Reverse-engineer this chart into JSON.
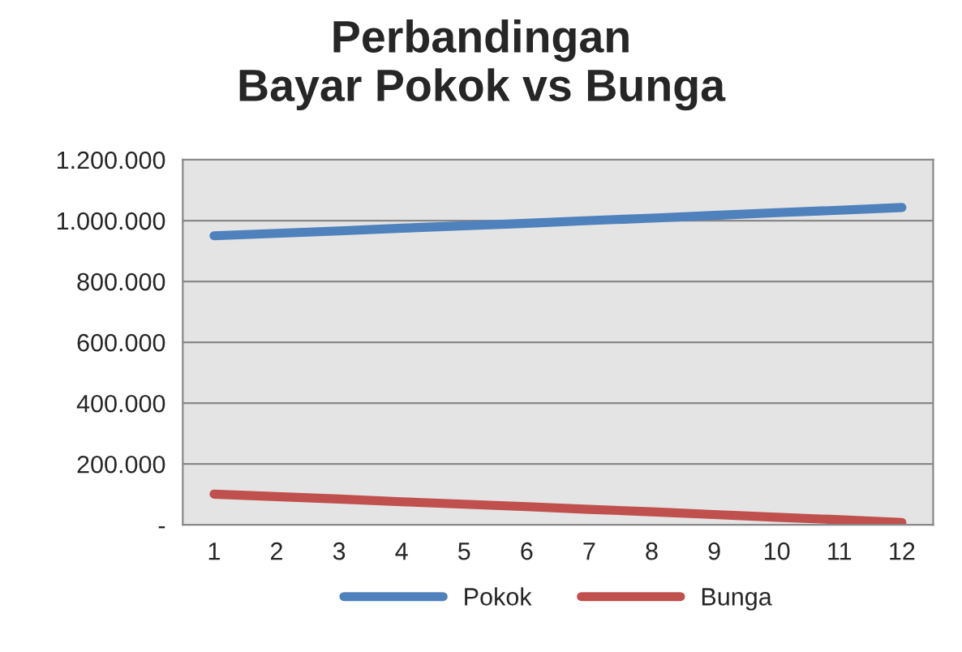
{
  "chart_data": {
    "type": "line",
    "title": "Perbandingan\nBayar Pokok vs Bunga",
    "categories": [
      "1",
      "2",
      "3",
      "4",
      "5",
      "6",
      "7",
      "8",
      "9",
      "10",
      "11",
      "12"
    ],
    "series": [
      {
        "name": "Pokok",
        "color": "#4f81bd",
        "values": [
          950000,
          958000,
          966000,
          975000,
          983000,
          991000,
          1000000,
          1008000,
          1017000,
          1026000,
          1034000,
          1043000
        ]
      },
      {
        "name": "Bunga",
        "color": "#c0504d",
        "values": [
          101000,
          93000,
          85000,
          76000,
          68000,
          60000,
          51000,
          43000,
          34000,
          25000,
          17000,
          8000
        ]
      }
    ],
    "ylim": [
      0,
      1200000
    ],
    "yticks": [
      {
        "value": 0,
        "label": "-"
      },
      {
        "value": 200000,
        "label": "200.000"
      },
      {
        "value": 400000,
        "label": "400.000"
      },
      {
        "value": 600000,
        "label": "600.000"
      },
      {
        "value": 800000,
        "label": "800.000"
      },
      {
        "value": 1000000,
        "label": "1.000.000"
      },
      {
        "value": 1200000,
        "label": "1.200.000"
      }
    ],
    "grid": "y",
    "legend": "bottom",
    "marker": "none",
    "line_style": "solid"
  }
}
